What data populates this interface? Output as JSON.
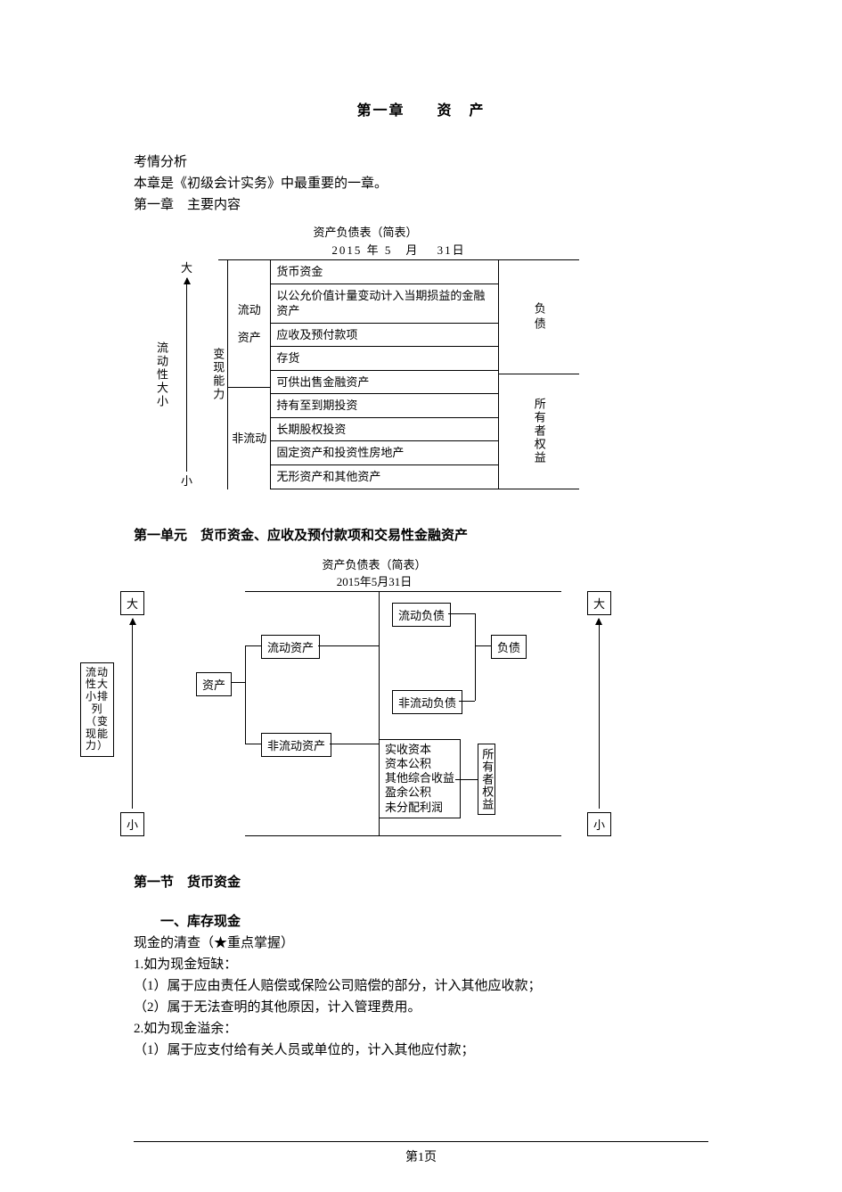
{
  "chapter_title": "第一章　　资　产",
  "intro": {
    "l1": "考情分析",
    "l2": "本章是《初级会计实务》中最重要的一章。",
    "l3": "第一章　主要内容"
  },
  "diag1": {
    "title": "资产负债表（简表）",
    "date": "2015 年 5　月　 31日",
    "big": "大",
    "small": "小",
    "axis_label": "流动性大小",
    "col_ability": "变现能力",
    "col_flow_asset_top": "流动",
    "col_flow_asset_mid": "资产",
    "col_flow_asset_bot": "非流动",
    "rows": {
      "r1": "货币资金",
      "r2": "以公允价值计量变动计入当期损益的金融资产",
      "r3": "应收及预付款项",
      "r4": "存货",
      "r5": "可供出售金融资产",
      "r6": "持有至到期投资",
      "r7": "长期股权投资",
      "r8": "固定资产和投资性房地产",
      "r9": "无形资产和其他资产"
    },
    "right_top": "负债",
    "right_bot": "所有者权益"
  },
  "unit1_title": "第一单元　货币资金、应收及预付款项和交易性金融资产",
  "diag2": {
    "title": "资产负债表（简表）",
    "date": "2015年5月31日",
    "big": "大",
    "small": "小",
    "axis_left": "流动性大小排列\n（变现能力）",
    "asset": "资产",
    "cur_asset": "流动资产",
    "noncur_asset": "非流动资产",
    "cur_liab": "流动负债",
    "noncur_liab": "非流动负债",
    "liab": "负债",
    "equity": "所有者权益",
    "equity_items": "实收资本\n资本公积\n其他综合收益\n盈余公积\n未分配利润"
  },
  "section1_title": "第一节　货币资金",
  "sec1": {
    "h1": "一、库存现金",
    "l1": "现金的清查（★重点掌握）",
    "l2": "1.如为现金短缺：",
    "l3": "（1）属于应由责任人赔偿或保险公司赔偿的部分，计入其他应收款；",
    "l4": "（2）属于无法查明的其他原因，计入管理费用。",
    "l5": "2.如为现金溢余：",
    "l6": "（1）属于应支付给有关人员或单位的，计入其他应付款；"
  },
  "footer": "第1页"
}
